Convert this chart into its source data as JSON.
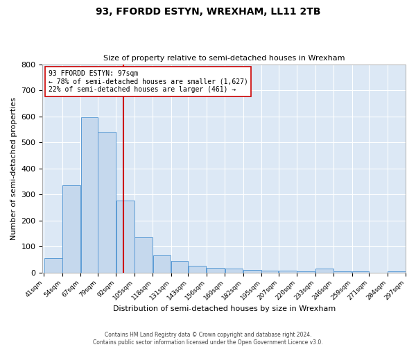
{
  "title": "93, FFORDD ESTYN, WREXHAM, LL11 2TB",
  "subtitle": "Size of property relative to semi-detached houses in Wrexham",
  "xlabel": "Distribution of semi-detached houses by size in Wrexham",
  "ylabel": "Number of semi-detached properties",
  "bins": [
    41,
    54,
    67,
    79,
    92,
    105,
    118,
    131,
    143,
    156,
    169,
    182,
    195,
    207,
    220,
    233,
    246,
    259,
    271,
    284,
    297
  ],
  "values": [
    55,
    335,
    595,
    540,
    275,
    135,
    65,
    45,
    27,
    18,
    15,
    10,
    8,
    7,
    5,
    15,
    5,
    5,
    0,
    5
  ],
  "property_size": 97,
  "vline_color": "#cc0000",
  "vline_x": 97,
  "annotation_line1": "93 FFORDD ESTYN: 97sqm",
  "annotation_line2": "← 78% of semi-detached houses are smaller (1,627)",
  "annotation_line3": "22% of semi-detached houses are larger (461) →",
  "annotation_box_color": "#ffffff",
  "annotation_box_edge": "#cc0000",
  "bar_color": "#c5d8ed",
  "bar_edge_color": "#5b9bd5",
  "ylim": [
    0,
    800
  ],
  "yticks": [
    0,
    100,
    200,
    300,
    400,
    500,
    600,
    700,
    800
  ],
  "tick_labels": [
    "41sqm",
    "54sqm",
    "67sqm",
    "79sqm",
    "92sqm",
    "105sqm",
    "118sqm",
    "131sqm",
    "143sqm",
    "156sqm",
    "169sqm",
    "182sqm",
    "195sqm",
    "207sqm",
    "220sqm",
    "233sqm",
    "246sqm",
    "259sqm",
    "271sqm",
    "284sqm",
    "297sqm"
  ],
  "footer_line1": "Contains HM Land Registry data © Crown copyright and database right 2024.",
  "footer_line2": "Contains public sector information licensed under the Open Government Licence v3.0.",
  "bg_color": "#ffffff",
  "plot_bg_color": "#dce8f5"
}
